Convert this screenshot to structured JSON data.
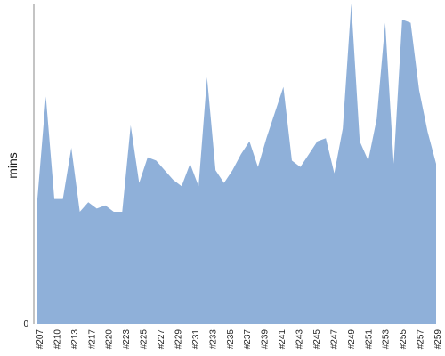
{
  "chart_data": {
    "type": "area",
    "title": "",
    "xlabel": "",
    "ylabel": "mins",
    "ylim": [
      0,
      1
    ],
    "y_tick_labels": [
      "0"
    ],
    "grid": false,
    "legend": "none",
    "colors": {
      "area": "#8fb0d9",
      "axis": "#888888",
      "text": "#222222"
    },
    "x_tick_labels": [
      "#207",
      "#210",
      "#213",
      "#217",
      "#220",
      "#223",
      "#225",
      "#227",
      "#229",
      "#231",
      "#233",
      "#235",
      "#237",
      "#239",
      "#241",
      "#243",
      "#245",
      "#247",
      "#249",
      "#251",
      "#253",
      "#255",
      "#257",
      "#259"
    ],
    "series": [
      {
        "values": [
          0.39,
          0.71,
          0.39,
          0.39,
          0.55,
          0.35,
          0.38,
          0.36,
          0.37,
          0.35,
          0.35,
          0.62,
          0.44,
          0.52,
          0.51,
          0.48,
          0.45,
          0.43,
          0.5,
          0.43,
          0.77,
          0.48,
          0.44,
          0.48,
          0.53,
          0.57,
          0.49,
          0.58,
          0.66,
          0.74,
          0.51,
          0.49,
          0.53,
          0.57,
          0.58,
          0.47,
          0.61,
          1.02,
          0.57,
          0.51,
          0.64,
          0.94,
          0.5,
          0.95,
          0.94,
          0.73,
          0.6,
          0.5
        ]
      }
    ]
  }
}
